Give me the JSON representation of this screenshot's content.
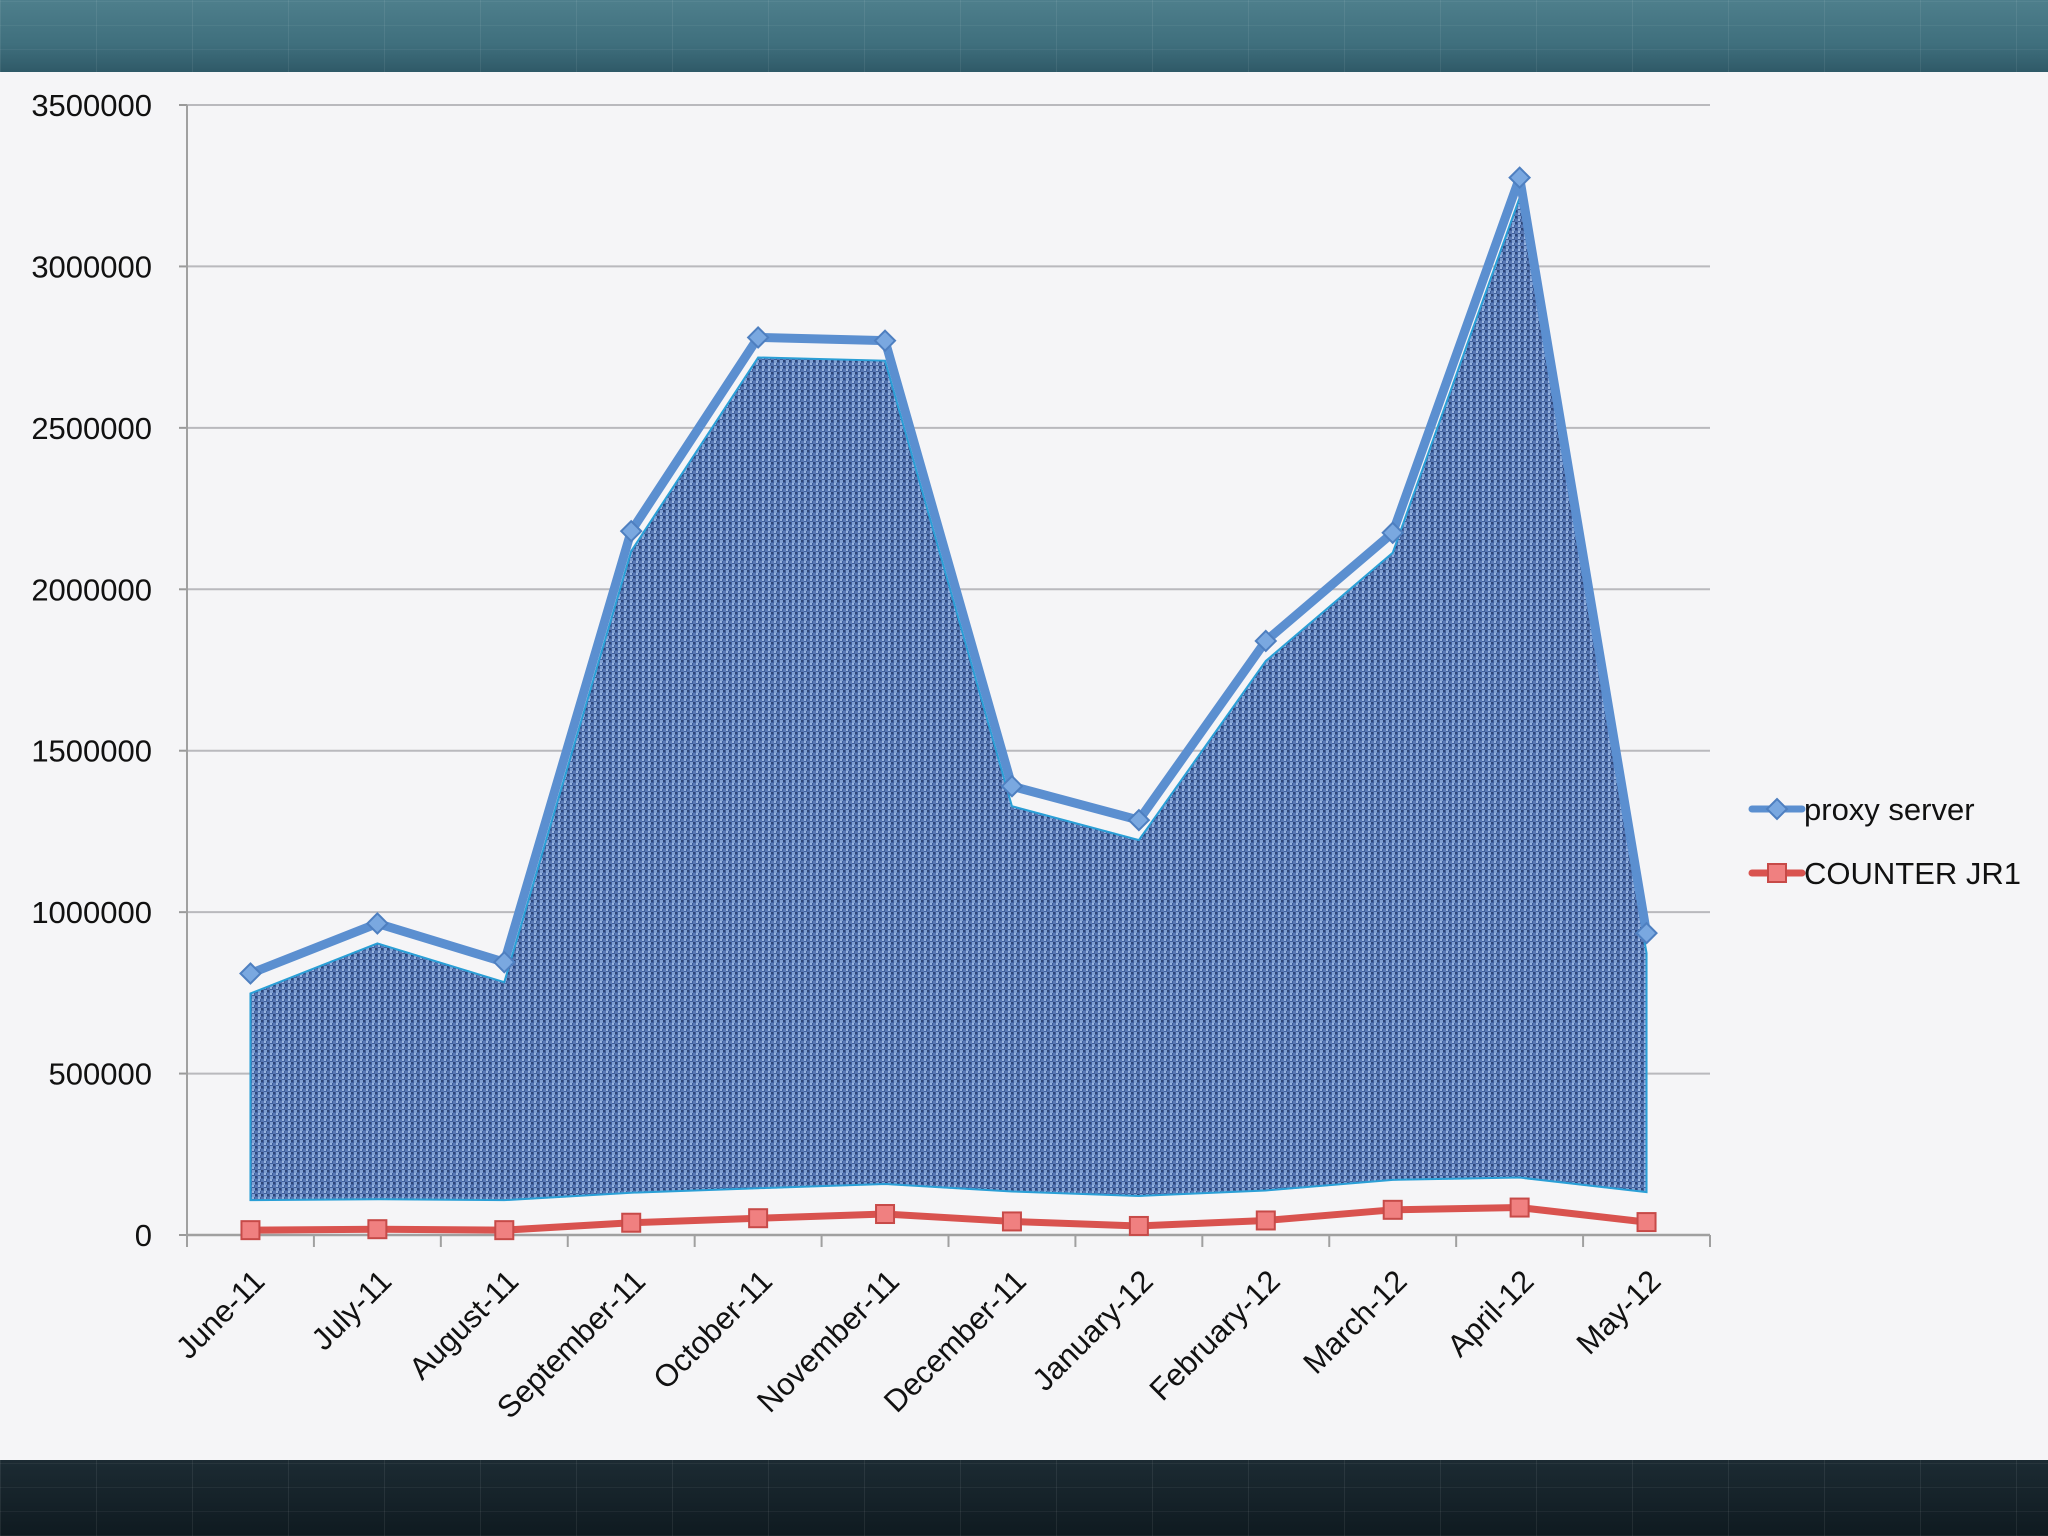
{
  "chart_data": {
    "type": "area",
    "categories": [
      "June-11",
      "July-11",
      "August-11",
      "September-11",
      "October-11",
      "November-11",
      "December-11",
      "January-12",
      "February-12",
      "March-12",
      "April-12",
      "May-12"
    ],
    "series": [
      {
        "name": "proxy server",
        "values": [
          810000,
          965000,
          845000,
          2180000,
          2780000,
          2770000,
          1390000,
          1285000,
          1840000,
          2175000,
          3275000,
          935000
        ],
        "color": "#5b8fd0",
        "marker": "diamond"
      },
      {
        "name": "COUNTER JR1",
        "values": [
          15000,
          18000,
          15000,
          38000,
          52000,
          65000,
          42000,
          28000,
          45000,
          78000,
          85000,
          40000
        ],
        "color": "#d9534f",
        "marker": "square"
      }
    ],
    "yticks": [
      "0",
      "500000",
      "1000000",
      "1500000",
      "2000000",
      "2500000",
      "3000000",
      "3500000"
    ],
    "ylim": [
      0,
      3500000
    ],
    "grid": true,
    "legend_position": "right",
    "xlabel": "",
    "ylabel": "",
    "title": ""
  }
}
